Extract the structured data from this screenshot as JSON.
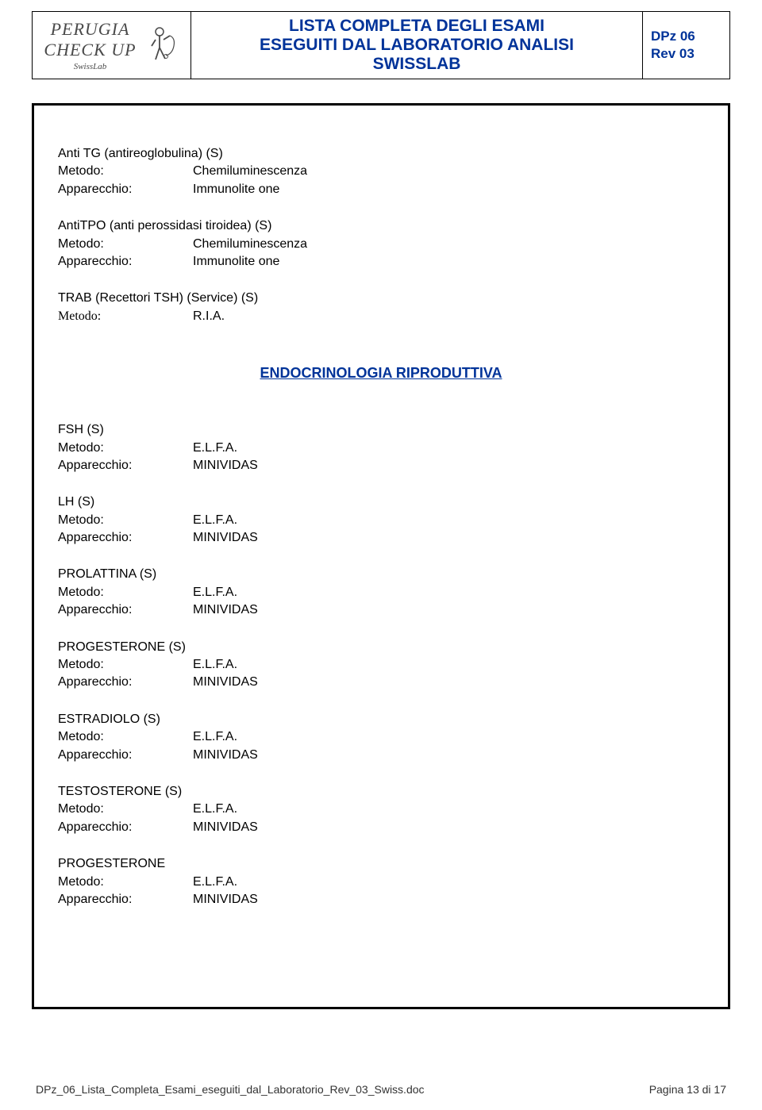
{
  "header": {
    "logo_perugia": "PERUGIA",
    "logo_checkup": "CHECK UP",
    "logo_swisslab": "SwissLab",
    "title_line1": "LISTA COMPLETA DEGLI ESAMI",
    "title_line2": "ESEGUITI DAL LABORATORIO ANALISI",
    "title_line3": "SWISSLAB",
    "docref_line1": "DPz 06",
    "docref_line2": "Rev 03"
  },
  "labels": {
    "metodo": "Metodo:",
    "apparecchio": "Apparecchio:"
  },
  "exams_top": [
    {
      "name": "Anti TG  (antireoglobulina) (S)",
      "metodo": "Chemiluminescenza",
      "apparecchio": "Immunolite one",
      "metodo_font": "normal"
    },
    {
      "name": "AntiTPO  (anti perossidasi tiroidea) (S)",
      "metodo": "Chemiluminescenza",
      "apparecchio": "Immunolite one",
      "metodo_font": "normal"
    },
    {
      "name": "TRAB (Recettori TSH) (Service) (S)",
      "metodo": "R.I.A.",
      "apparecchio": null,
      "metodo_font": "times"
    }
  ],
  "section_heading": "ENDOCRINOLOGIA  RIPRODUTTIVA",
  "exams_bottom": [
    {
      "name": "FSH (S)",
      "metodo": "E.L.F.A.",
      "apparecchio": "MINIVIDAS"
    },
    {
      "name": "LH (S)",
      "metodo": "E.L.F.A.",
      "apparecchio": "MINIVIDAS"
    },
    {
      "name": "PROLATTINA (S)",
      "metodo": "E.L.F.A.",
      "apparecchio": "MINIVIDAS"
    },
    {
      "name": "PROGESTERONE (S)",
      "metodo": "E.L.F.A.",
      "apparecchio": "MINIVIDAS"
    },
    {
      "name": "ESTRADIOLO (S)",
      "metodo": "E.L.F.A.",
      "apparecchio": "MINIVIDAS"
    },
    {
      "name": "TESTOSTERONE (S)",
      "metodo": "E.L.F.A.",
      "apparecchio": "MINIVIDAS"
    },
    {
      "name": "PROGESTERONE",
      "metodo": "E.L.F.A.",
      "apparecchio": "MINIVIDAS"
    }
  ],
  "footer": {
    "filename": "DPz_06_Lista_Completa_Esami_eseguiti_dal_Laboratorio_Rev_03_Swiss.doc",
    "page": "Pagina 13 di 17"
  },
  "colors": {
    "heading_blue": "#003399",
    "text_black": "#000000",
    "logo_gray": "#4a4a4a"
  }
}
